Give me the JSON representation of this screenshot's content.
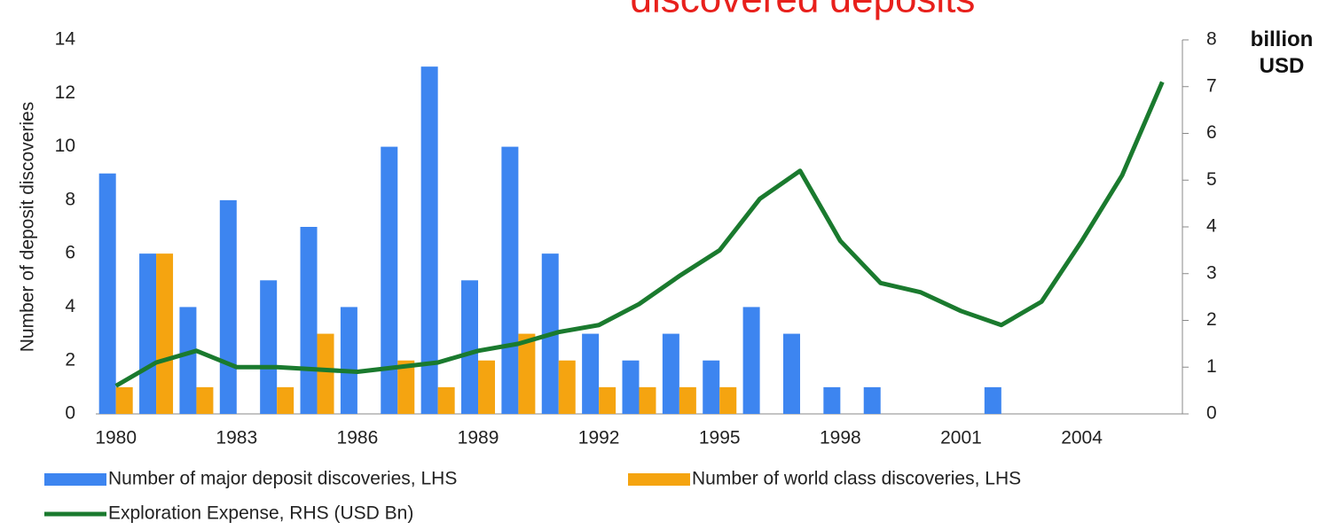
{
  "chart_data": {
    "type": "bar",
    "title": "discovered deposits",
    "y_label": "Number of deposit discoveries",
    "y2_label": "billion USD",
    "categories": [
      "1980",
      null,
      null,
      "1983",
      null,
      null,
      "1986",
      null,
      null,
      "1989",
      null,
      null,
      "1992",
      null,
      null,
      "1995",
      null,
      null,
      "1998",
      null,
      null,
      "2001",
      null,
      null,
      "2004",
      null,
      null
    ],
    "series": [
      {
        "name": "Number of major deposit discoveries, LHS",
        "color": "#3d85f0",
        "type": "bar",
        "values": [
          9,
          6,
          4,
          8,
          5,
          7,
          4,
          10,
          13,
          5,
          10,
          6,
          3,
          2,
          3,
          2,
          4,
          3,
          1,
          1,
          0,
          0,
          1,
          0,
          0,
          0,
          0
        ]
      },
      {
        "name": "Number of world class discoveries, LHS",
        "color": "#f5a410",
        "type": "bar",
        "values": [
          1,
          6,
          1,
          0,
          1,
          3,
          0,
          2,
          1,
          2,
          3,
          2,
          1,
          1,
          1,
          1,
          0,
          0,
          0,
          0,
          0,
          0,
          0,
          0,
          0,
          0,
          0
        ]
      },
      {
        "name": "Exploration Expense, RHS (USD Bn)",
        "color": "#1a7a2e",
        "type": "line",
        "axis": "y2",
        "values": [
          0.6,
          1.1,
          1.35,
          1.0,
          1.0,
          0.95,
          0.9,
          1.0,
          1.1,
          1.35,
          1.5,
          1.75,
          1.9,
          2.35,
          2.95,
          3.5,
          4.6,
          5.2,
          3.7,
          2.8,
          2.6,
          2.2,
          1.9,
          2.4,
          3.7,
          5.1,
          7.1
        ]
      }
    ],
    "ylim": [
      0,
      14
    ],
    "yticks": [
      0,
      2,
      4,
      6,
      8,
      10,
      12,
      14
    ],
    "y2lim": [
      0,
      8
    ],
    "y2ticks": [
      0,
      1,
      2,
      3,
      4,
      5,
      6,
      7,
      8
    ],
    "grid": false
  }
}
